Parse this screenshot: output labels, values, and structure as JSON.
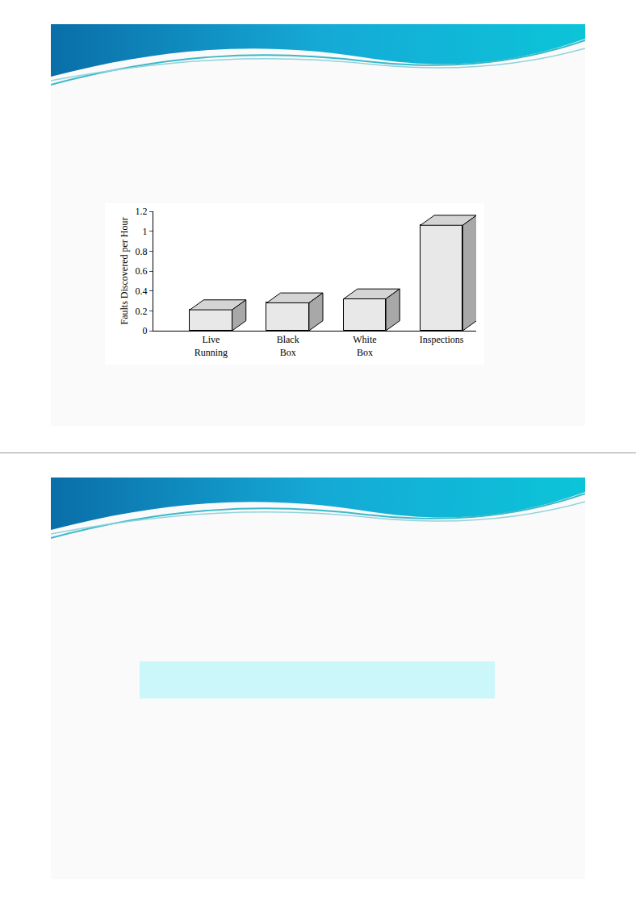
{
  "chart_data": {
    "type": "bar",
    "categories": [
      "Live Running",
      "Black Box",
      "White Box",
      "Inspections"
    ],
    "values": [
      0.21,
      0.28,
      0.32,
      1.06
    ],
    "color": "#e8e8e8",
    "ylabel": "Faults Discovered per Hour",
    "ylim": [
      0,
      1.2
    ],
    "yticks": [
      0,
      0.2,
      0.4,
      0.6,
      0.8,
      1,
      1.2
    ],
    "grid": false
  }
}
